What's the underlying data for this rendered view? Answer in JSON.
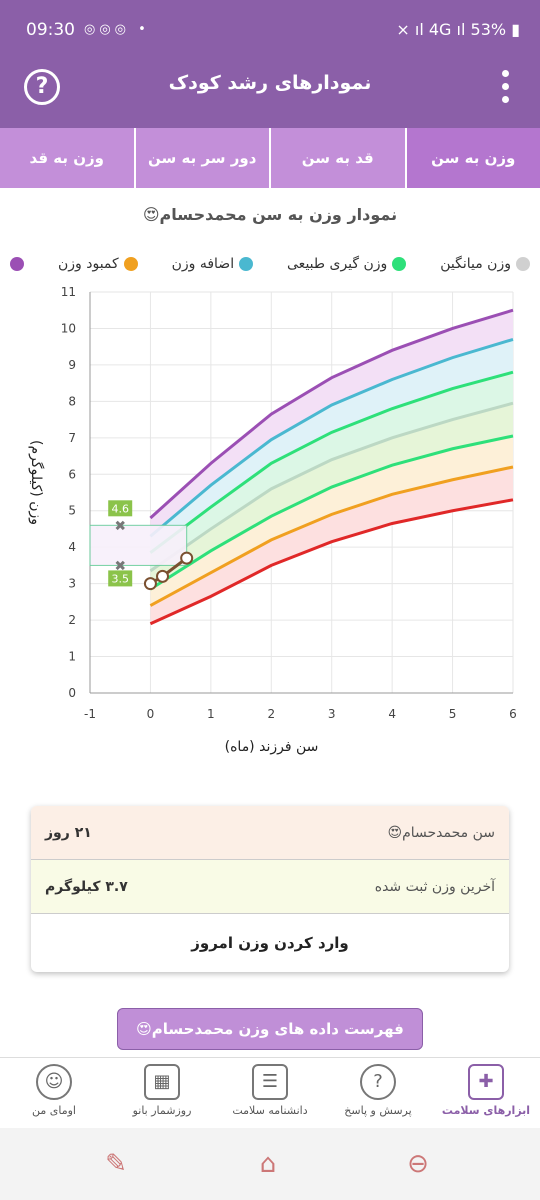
{
  "status": {
    "time": "09:30",
    "battery": "53%",
    "network": "4G"
  },
  "appbar": {
    "title": "نمودارهای رشد کودک"
  },
  "tabs": [
    {
      "label": "وزن به سن",
      "active": true
    },
    {
      "label": "قد به سن",
      "active": false
    },
    {
      "label": "دور سر به سن",
      "active": false
    },
    {
      "label": "وزن به قد",
      "active": false
    }
  ],
  "chart_title": "نمودار وزن به سن محمدحسام😍",
  "legend": [
    {
      "label": "کمبود وزن",
      "color": "#f0a020"
    },
    {
      "label": "اضافه وزن",
      "color": "#4ab8d0"
    },
    {
      "label": "وزن گیری طبیعی",
      "color": "#2ee07a"
    },
    {
      "label": "وزن میانگین",
      "color": "#d0d0d0"
    }
  ],
  "chart_data": {
    "type": "line",
    "xlabel": "سن فرزند (ماه)",
    "ylabel": "وزن (کیلوگرم)",
    "xlim": [
      -1,
      6
    ],
    "ylim": [
      0,
      11
    ],
    "x_ticks": [
      "-1",
      "0",
      "1",
      "2",
      "3",
      "4",
      "5",
      "6"
    ],
    "y_ticks": [
      "0",
      "1",
      "2",
      "3",
      "4",
      "5",
      "6",
      "7",
      "8",
      "9",
      "10",
      "11"
    ],
    "x": [
      0,
      1,
      2,
      3,
      4,
      5,
      6
    ],
    "series": [
      {
        "color": "#9b4fb4",
        "values": [
          4.8,
          6.3,
          7.65,
          8.65,
          9.4,
          10.0,
          10.5
        ]
      },
      {
        "color": "#4ab8d0",
        "values": [
          4.3,
          5.7,
          6.95,
          7.9,
          8.6,
          9.2,
          9.7
        ]
      },
      {
        "color": "#2ee07a",
        "values": [
          3.85,
          5.1,
          6.3,
          7.15,
          7.8,
          8.35,
          8.8
        ]
      },
      {
        "color": "#bcd8c4",
        "values": [
          3.35,
          4.5,
          5.6,
          6.4,
          7.0,
          7.5,
          7.95
        ]
      },
      {
        "color": "#2ee07a",
        "values": [
          2.85,
          3.9,
          4.85,
          5.65,
          6.25,
          6.7,
          7.05
        ]
      },
      {
        "color": "#f0a020",
        "values": [
          2.4,
          3.3,
          4.2,
          4.9,
          5.45,
          5.85,
          6.2
        ]
      },
      {
        "color": "#e02828",
        "values": [
          1.9,
          2.65,
          3.5,
          4.15,
          4.65,
          5.0,
          5.3
        ]
      }
    ],
    "child_points": {
      "x": [
        0,
        0.2,
        0.6
      ],
      "y": [
        3.0,
        3.2,
        3.7
      ]
    },
    "range_marker": {
      "x": -0.5,
      "high": 4.6,
      "low": 3.5,
      "high_label": "4.6",
      "low_label": "3.5"
    }
  },
  "card": {
    "age_label": "سن محمدحسام😍",
    "age_value": "۲۱ روز",
    "weight_label": "آخرین وزن ثبت شده",
    "weight_value": "۳.۷ کیلوگرم",
    "enter_label": "وارد کردن وزن امروز"
  },
  "list_button": "فهرست داده های وزن محمدحسام😍",
  "bottomnav": [
    {
      "label": "ابزارهای سلامت",
      "icon": "health-kit-icon",
      "active": true
    },
    {
      "label": "پرسش و پاسخ",
      "icon": "question-icon",
      "active": false
    },
    {
      "label": "دانشنامه سلامت",
      "icon": "newspaper-icon",
      "active": false
    },
    {
      "label": "روزشمار بانو",
      "icon": "calendar-icon",
      "active": false
    },
    {
      "label": "اومای من",
      "icon": "avatar-icon",
      "active": false
    }
  ]
}
